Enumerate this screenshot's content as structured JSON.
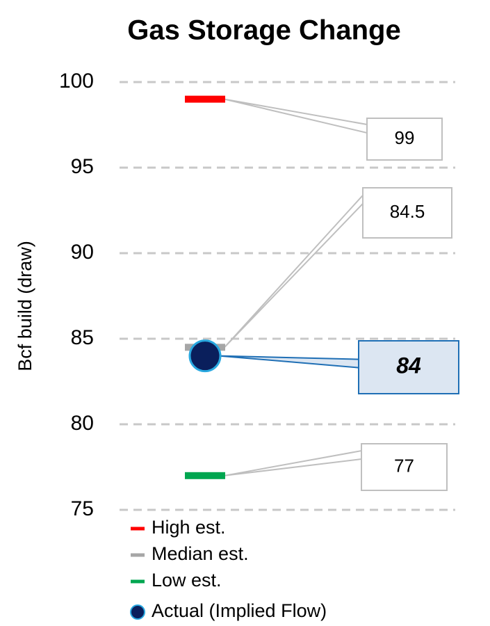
{
  "chart_data": {
    "type": "scatter",
    "title": "Gas Storage Change",
    "y_label": "Bcf build (draw)",
    "categories": [
      null
    ],
    "series": [
      {
        "name": "High est.",
        "color": "#ff0000",
        "marker": "dash",
        "values": [
          99
        ]
      },
      {
        "name": "Median est.",
        "color": "#a6a6a6",
        "marker": "dash",
        "values": [
          84.5
        ]
      },
      {
        "name": "Low est.",
        "color": "#00a650",
        "marker": "dash",
        "values": [
          77
        ]
      },
      {
        "name": "Actual (Implied Flow)",
        "color": "#0a1f5c",
        "edge_color": "#29a8e0",
        "marker": "circle",
        "values": [
          84
        ]
      }
    ],
    "ylim": [
      75,
      100
    ],
    "yticks": [
      75,
      80,
      85,
      90,
      95,
      100
    ],
    "grid": true
  }
}
